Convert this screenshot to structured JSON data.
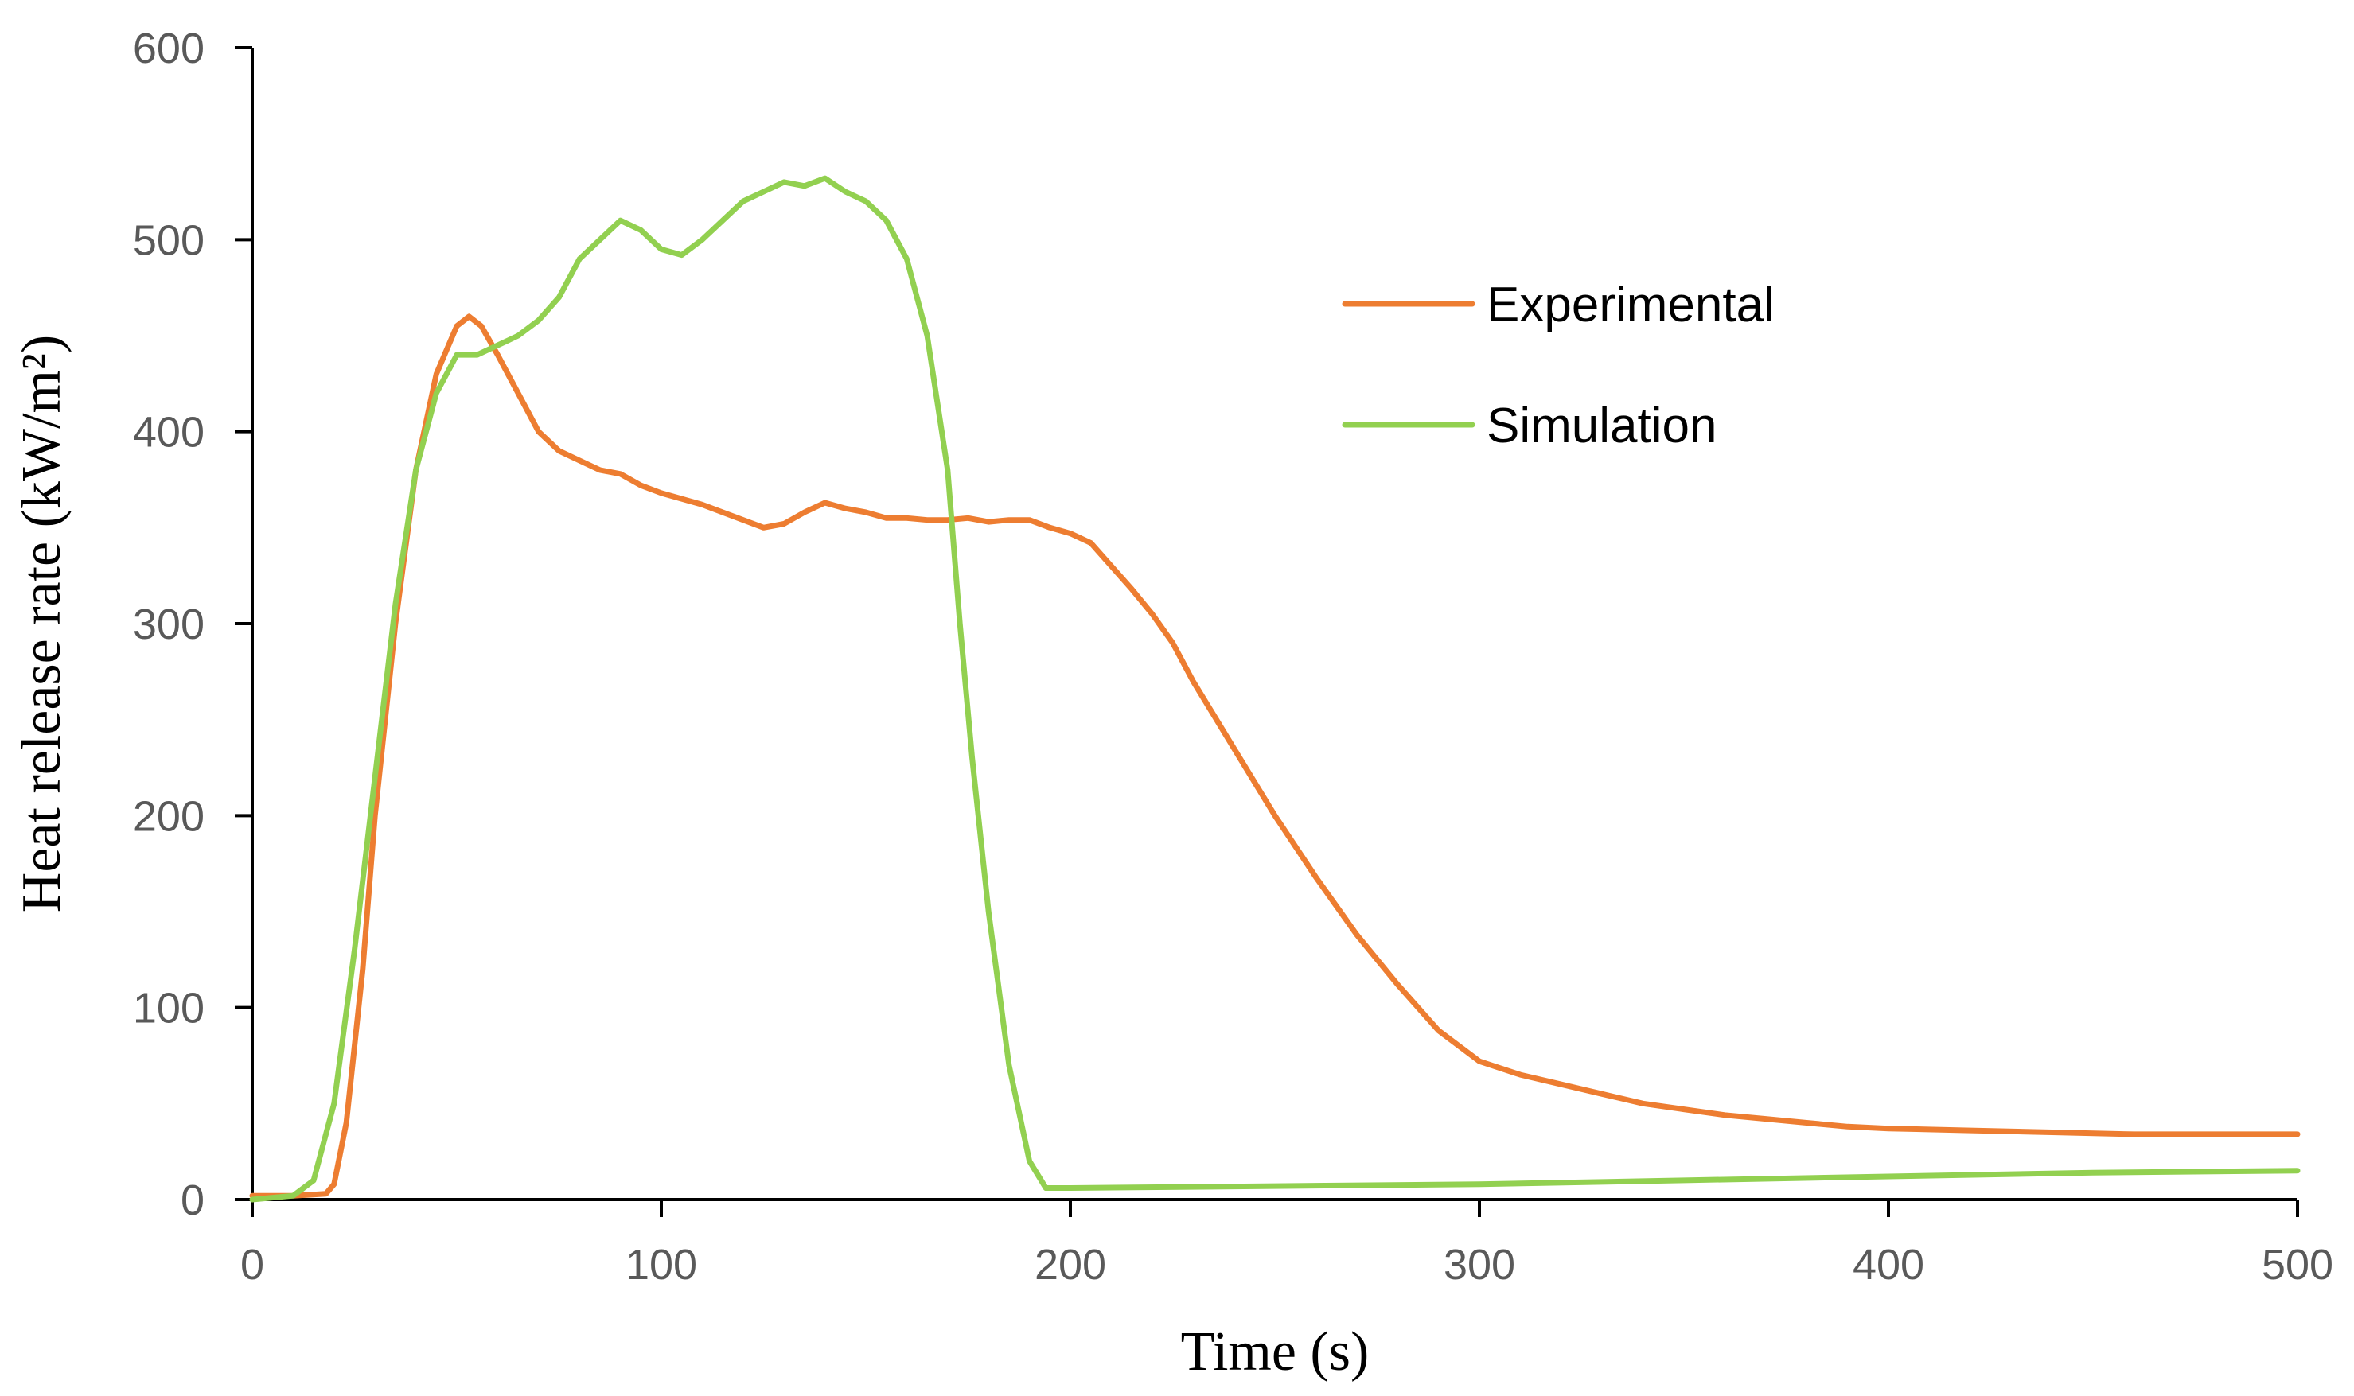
{
  "colors": {
    "experimental": "#ED7D31",
    "simulation": "#92D050",
    "axis": "#000000",
    "tick_text": "#595959"
  },
  "chart_data": {
    "type": "line",
    "title": "",
    "xlabel": "Time (s)",
    "ylabel": "Heat release rate (kW/m²)",
    "xlim": [
      0,
      500
    ],
    "ylim": [
      0,
      600
    ],
    "xticks": [
      0,
      100,
      200,
      300,
      400,
      500
    ],
    "yticks": [
      0,
      100,
      200,
      300,
      400,
      500,
      600
    ],
    "grid": false,
    "legend_position": "upper-right",
    "series": [
      {
        "name": "Experimental",
        "color": "#ED7D31",
        "x": [
          0,
          10,
          18,
          20,
          23,
          27,
          30,
          35,
          40,
          45,
          50,
          53,
          56,
          60,
          65,
          70,
          75,
          80,
          85,
          90,
          95,
          100,
          110,
          120,
          125,
          130,
          135,
          140,
          145,
          150,
          155,
          160,
          165,
          170,
          175,
          180,
          185,
          190,
          195,
          200,
          205,
          210,
          215,
          220,
          225,
          230,
          240,
          250,
          260,
          270,
          280,
          290,
          300,
          310,
          320,
          330,
          340,
          350,
          360,
          370,
          380,
          390,
          400,
          420,
          440,
          460,
          480,
          500
        ],
        "y": [
          2,
          2,
          3,
          8,
          40,
          120,
          200,
          300,
          380,
          430,
          455,
          460,
          455,
          440,
          420,
          400,
          390,
          385,
          380,
          378,
          372,
          368,
          362,
          354,
          350,
          352,
          358,
          363,
          360,
          358,
          355,
          355,
          354,
          354,
          355,
          353,
          354,
          354,
          350,
          347,
          342,
          330,
          318,
          305,
          290,
          270,
          235,
          200,
          168,
          138,
          112,
          88,
          72,
          65,
          60,
          55,
          50,
          47,
          44,
          42,
          40,
          38,
          37,
          36,
          35,
          34,
          34,
          34
        ]
      },
      {
        "name": "Simulation",
        "color": "#92D050",
        "x": [
          0,
          10,
          15,
          20,
          25,
          30,
          35,
          40,
          45,
          50,
          55,
          60,
          65,
          70,
          75,
          80,
          85,
          90,
          95,
          100,
          105,
          110,
          115,
          120,
          125,
          130,
          135,
          140,
          145,
          150,
          155,
          160,
          165,
          170,
          173,
          176,
          180,
          185,
          190,
          194,
          200,
          250,
          300,
          350,
          400,
          450,
          500
        ],
        "y": [
          0,
          2,
          10,
          50,
          130,
          220,
          310,
          380,
          420,
          440,
          440,
          445,
          450,
          458,
          470,
          490,
          500,
          510,
          505,
          495,
          492,
          500,
          510,
          520,
          525,
          530,
          528,
          532,
          525,
          520,
          510,
          490,
          450,
          380,
          300,
          230,
          150,
          70,
          20,
          6,
          6,
          7,
          8,
          10,
          12,
          14,
          15
        ]
      }
    ]
  }
}
